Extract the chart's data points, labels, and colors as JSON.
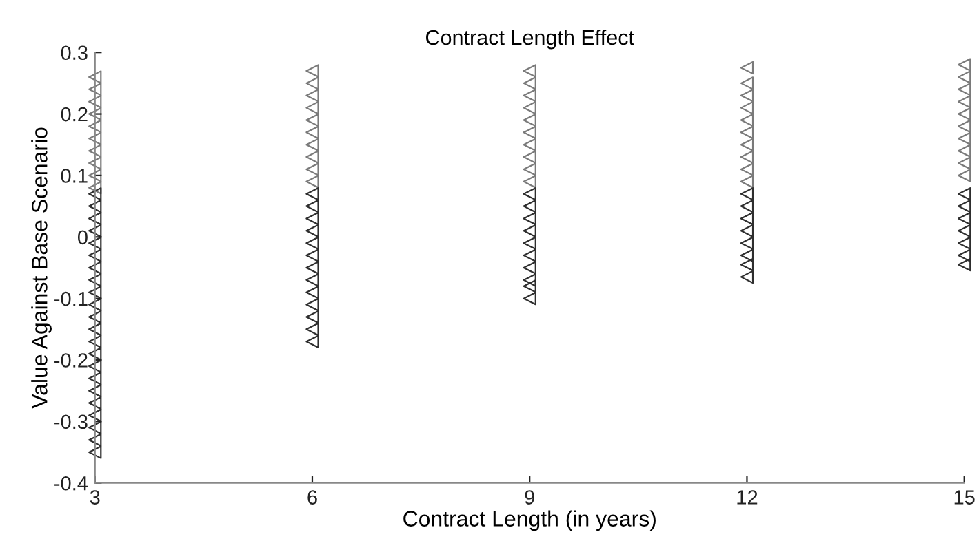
{
  "chart_data": {
    "type": "scatter",
    "title": "Contract Length Effect",
    "xlabel": "Contract Length (in years)",
    "ylabel": "Value Against Base Scenario",
    "xlim": [
      3,
      15
    ],
    "xticks": [
      3,
      6,
      9,
      12,
      15
    ],
    "ylim": [
      -0.4,
      0.3
    ],
    "yticks": [
      -0.4,
      -0.3,
      -0.2,
      -0.1,
      0,
      0.1,
      0.2,
      0.3
    ],
    "grid": false,
    "legend": false,
    "marker": "triangle",
    "series": [
      {
        "color": "#7a7a7a",
        "x": [
          3,
          3,
          3,
          3,
          3,
          3,
          3,
          3,
          3,
          3,
          6,
          6,
          6,
          6,
          6,
          6,
          6,
          6,
          6,
          6,
          9,
          9,
          9,
          9,
          9,
          9,
          9,
          9,
          9,
          9,
          12,
          12,
          12,
          12,
          12,
          12,
          12,
          12,
          12,
          12,
          15,
          15,
          15,
          15,
          15,
          15,
          15,
          15,
          15,
          15
        ],
        "values": [
          0.26,
          0.24,
          0.22,
          0.2,
          0.18,
          0.16,
          0.14,
          0.12,
          0.1,
          0.08,
          0.27,
          0.25,
          0.23,
          0.21,
          0.19,
          0.17,
          0.15,
          0.13,
          0.11,
          0.09,
          0.27,
          0.25,
          0.23,
          0.21,
          0.19,
          0.17,
          0.15,
          0.13,
          0.11,
          0.09,
          0.275,
          0.25,
          0.23,
          0.21,
          0.19,
          0.17,
          0.15,
          0.13,
          0.11,
          0.09,
          0.28,
          0.26,
          0.24,
          0.22,
          0.2,
          0.18,
          0.16,
          0.14,
          0.12,
          0.1
        ]
      },
      {
        "color": "#2e2e2e",
        "x": [
          3,
          3,
          3,
          3,
          3,
          3,
          3,
          3,
          3,
          3,
          3,
          3,
          3,
          3,
          3,
          3,
          3,
          3,
          3,
          3,
          3,
          3,
          6,
          6,
          6,
          6,
          6,
          6,
          6,
          6,
          6,
          6,
          6,
          6,
          6,
          9,
          9,
          9,
          9,
          9,
          9,
          9,
          9,
          9,
          9,
          12,
          12,
          12,
          12,
          12,
          12,
          12,
          12,
          15,
          15,
          15,
          15,
          15,
          15,
          15
        ],
        "values": [
          0.07,
          0.05,
          0.03,
          0.01,
          -0.01,
          -0.03,
          -0.05,
          -0.07,
          -0.09,
          -0.11,
          -0.13,
          -0.15,
          -0.17,
          -0.19,
          -0.21,
          -0.23,
          -0.25,
          -0.27,
          -0.29,
          -0.31,
          -0.33,
          -0.35,
          0.07,
          0.05,
          0.03,
          0.01,
          -0.01,
          -0.03,
          -0.05,
          -0.07,
          -0.09,
          -0.11,
          -0.13,
          -0.15,
          -0.17,
          0.07,
          0.05,
          0.03,
          0.01,
          -0.01,
          -0.03,
          -0.05,
          -0.07,
          -0.08,
          -0.1,
          0.07,
          0.05,
          0.03,
          0.01,
          -0.01,
          -0.03,
          -0.045,
          -0.065,
          0.07,
          0.05,
          0.03,
          0.01,
          -0.01,
          -0.03,
          -0.045
        ]
      }
    ]
  }
}
